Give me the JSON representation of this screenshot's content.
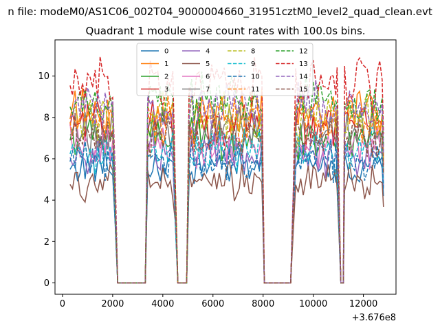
{
  "chart_data": {
    "type": "line",
    "suptitle": "n file: modeM0/AS1C06_002T04_9000004660_31951cztM0_level2_quad_clean.evt",
    "title": "Quadrant 1 module wise count rates with 100.0s bins.",
    "xlabel": "",
    "ylabel": "",
    "x_offset_label": "+3.676e8",
    "xlim": [
      -300,
      13300
    ],
    "ylim": [
      -0.55,
      11.75
    ],
    "x_ticks": [
      0,
      2000,
      4000,
      6000,
      8000,
      10000,
      12000
    ],
    "y_ticks": [
      0,
      2,
      4,
      6,
      8,
      10
    ],
    "x_tick_labels": [
      "0",
      "2000",
      "4000",
      "6000",
      "8000",
      "10000",
      "12000"
    ],
    "y_tick_labels": [
      "0",
      "2",
      "4",
      "6",
      "8",
      "10"
    ],
    "grid": false,
    "legend_position": "top-center",
    "legend_columns": 4,
    "segments": [
      {
        "start": 300,
        "end": 2000,
        "kind": "on"
      },
      {
        "start": 2000,
        "end": 2200,
        "kind": "fall"
      },
      {
        "start": 2200,
        "end": 3300,
        "kind": "zero"
      },
      {
        "start": 3300,
        "end": 3400,
        "kind": "rise"
      },
      {
        "start": 3400,
        "end": 4400,
        "kind": "on"
      },
      {
        "start": 4400,
        "end": 4600,
        "kind": "fall"
      },
      {
        "start": 4600,
        "end": 4950,
        "kind": "zero"
      },
      {
        "start": 4950,
        "end": 5050,
        "kind": "rise"
      },
      {
        "start": 5050,
        "end": 7950,
        "kind": "on"
      },
      {
        "start": 7950,
        "end": 8050,
        "kind": "fall"
      },
      {
        "start": 8050,
        "end": 9100,
        "kind": "zero"
      },
      {
        "start": 9100,
        "end": 9300,
        "kind": "rise"
      },
      {
        "start": 9300,
        "end": 10950,
        "kind": "on"
      },
      {
        "start": 10950,
        "end": 11100,
        "kind": "fall"
      },
      {
        "start": 11100,
        "end": 11250,
        "kind": "zero"
      },
      {
        "start": 11250,
        "end": 12800,
        "kind": "on"
      }
    ],
    "series": [
      {
        "name": "0",
        "color": "#1f77b4",
        "dash": "solid",
        "level": 5.6
      },
      {
        "name": "1",
        "color": "#ff7f0e",
        "dash": "solid",
        "level": 8.2
      },
      {
        "name": "2",
        "color": "#2ca02c",
        "dash": "solid",
        "level": 7.0
      },
      {
        "name": "3",
        "color": "#d62728",
        "dash": "solid",
        "level": 7.6
      },
      {
        "name": "4",
        "color": "#9467bd",
        "dash": "solid",
        "level": 6.2
      },
      {
        "name": "5",
        "color": "#8c564b",
        "dash": "solid",
        "level": 4.9
      },
      {
        "name": "6",
        "color": "#e377c2",
        "dash": "solid",
        "level": 6.6
      },
      {
        "name": "7",
        "color": "#7f7f7f",
        "dash": "solid",
        "level": 7.3
      },
      {
        "name": "8",
        "color": "#bcbd22",
        "dash": "dashed",
        "level": 8.0
      },
      {
        "name": "9",
        "color": "#17becf",
        "dash": "dashed",
        "level": 6.4
      },
      {
        "name": "10",
        "color": "#1f77b4",
        "dash": "dashed",
        "level": 6.0
      },
      {
        "name": "11",
        "color": "#ff7f0e",
        "dash": "dashed",
        "level": 7.8
      },
      {
        "name": "12",
        "color": "#2ca02c",
        "dash": "dashed",
        "level": 8.8
      },
      {
        "name": "13",
        "color": "#d62728",
        "dash": "dashed",
        "level": 9.6
      },
      {
        "name": "14",
        "color": "#9467bd",
        "dash": "dashed",
        "level": 8.4
      },
      {
        "name": "15",
        "color": "#8c564b",
        "dash": "dashed",
        "level": 7.1
      }
    ]
  }
}
